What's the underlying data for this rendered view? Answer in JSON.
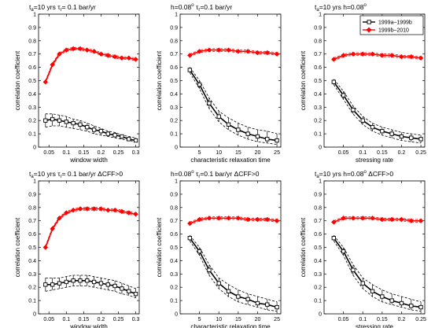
{
  "legend": {
    "location": "top-right of panel 3",
    "entries": [
      {
        "label": "1999a–1999b",
        "color": "#000000",
        "marker": "square"
      },
      {
        "label": "1999b–2010",
        "color": "#ff0000",
        "marker": "diamond"
      }
    ]
  },
  "colors": {
    "black_series": "#000000",
    "red_series": "#ff0000",
    "bounds": "#000000"
  },
  "chart_data": [
    {
      "type": "line",
      "title_parts": [
        "t",
        "a",
        "=10 yrs",
        "τ",
        "r",
        "= 0.1 bar/yr",
        ""
      ],
      "xlabel": "window width",
      "ylabel": "correlation coefficient",
      "xlim": [
        0.02,
        0.31
      ],
      "ylim": [
        0,
        1
      ],
      "xticks": [
        "0.05",
        "0.1",
        "0.15",
        "0.2",
        "0.25",
        "0.3"
      ],
      "xtick_values": [
        0.05,
        0.1,
        0.15,
        0.2,
        0.25,
        0.3
      ],
      "yticks": [
        "0",
        "0.1",
        "0.2",
        "0.3",
        "0.4",
        "0.5",
        "0.6",
        "0.7",
        "0.8",
        "0.9",
        "1"
      ],
      "x": [
        0.04,
        0.06,
        0.08,
        0.1,
        0.12,
        0.14,
        0.16,
        0.18,
        0.2,
        0.22,
        0.24,
        0.26,
        0.28,
        0.3
      ],
      "series": [
        {
          "name": "1999a–1999b",
          "color": "#000000",
          "marker": "square",
          "values": [
            0.2,
            0.21,
            0.2,
            0.19,
            0.18,
            0.17,
            0.15,
            0.13,
            0.12,
            0.1,
            0.09,
            0.08,
            0.06,
            0.05
          ],
          "lower": [
            0.15,
            0.16,
            0.16,
            0.15,
            0.14,
            0.13,
            0.12,
            0.1,
            0.09,
            0.08,
            0.07,
            0.06,
            0.05,
            0.04
          ],
          "upper": [
            0.25,
            0.25,
            0.24,
            0.23,
            0.21,
            0.2,
            0.18,
            0.16,
            0.14,
            0.12,
            0.11,
            0.09,
            0.08,
            0.07
          ]
        },
        {
          "name": "1999b–2010",
          "color": "#ff0000",
          "marker": "diamond",
          "values": [
            0.49,
            0.62,
            0.7,
            0.73,
            0.74,
            0.74,
            0.73,
            0.72,
            0.7,
            0.69,
            0.68,
            0.67,
            0.67,
            0.66
          ],
          "lower": [
            0.48,
            0.61,
            0.69,
            0.72,
            0.73,
            0.73,
            0.72,
            0.71,
            0.69,
            0.68,
            0.67,
            0.66,
            0.66,
            0.65
          ],
          "upper": [
            0.5,
            0.63,
            0.71,
            0.74,
            0.75,
            0.75,
            0.74,
            0.73,
            0.71,
            0.7,
            0.69,
            0.68,
            0.68,
            0.67
          ]
        }
      ]
    },
    {
      "type": "line",
      "title_parts": [
        "h=0.08",
        "o",
        "",
        "τ",
        "r",
        "=0.1 bar/yr",
        ""
      ],
      "xlabel": "characteristic relaxation time",
      "ylabel": "correlation coefficient",
      "xlim": [
        0,
        26
      ],
      "ylim": [
        0,
        1
      ],
      "xticks": [
        "5",
        "10",
        "15",
        "20",
        "25"
      ],
      "xtick_values": [
        5,
        10,
        15,
        20,
        25
      ],
      "yticks": [
        "0",
        "0.1",
        "0.2",
        "0.3",
        "0.4",
        "0.5",
        "0.6",
        "0.7",
        "0.8",
        "0.9",
        "1"
      ],
      "x": [
        2.5,
        5,
        7.5,
        10,
        12.5,
        15,
        17.5,
        20,
        22.5,
        25
      ],
      "series": [
        {
          "name": "1999a–1999b",
          "color": "#000000",
          "marker": "square",
          "values": [
            0.58,
            0.47,
            0.33,
            0.23,
            0.17,
            0.13,
            0.1,
            0.08,
            0.06,
            0.05
          ],
          "lower": [
            0.56,
            0.44,
            0.29,
            0.19,
            0.13,
            0.09,
            0.06,
            0.04,
            0.03,
            0.02
          ],
          "upper": [
            0.6,
            0.5,
            0.37,
            0.27,
            0.22,
            0.18,
            0.15,
            0.13,
            0.12,
            0.1
          ]
        },
        {
          "name": "1999b–2010",
          "color": "#ff0000",
          "marker": "diamond",
          "values": [
            0.69,
            0.72,
            0.73,
            0.73,
            0.73,
            0.72,
            0.72,
            0.71,
            0.71,
            0.7
          ],
          "lower": [
            0.68,
            0.71,
            0.72,
            0.72,
            0.72,
            0.71,
            0.71,
            0.7,
            0.7,
            0.69
          ],
          "upper": [
            0.7,
            0.73,
            0.74,
            0.74,
            0.74,
            0.73,
            0.73,
            0.72,
            0.72,
            0.71
          ]
        }
      ]
    },
    {
      "type": "line",
      "title_parts": [
        "t",
        "a",
        "=10 yrs",
        "",
        "",
        "h=0.08",
        "o"
      ],
      "xlabel": "stressing rate",
      "ylabel": "correlation coefficient",
      "xlim": [
        0,
        0.26
      ],
      "ylim": [
        0,
        1
      ],
      "xticks": [
        "0.05",
        "0.1",
        "0.15",
        "0.2",
        "0.25"
      ],
      "xtick_values": [
        0.05,
        0.1,
        0.15,
        0.2,
        0.25
      ],
      "yticks": [
        "0",
        "0.1",
        "0.2",
        "0.3",
        "0.4",
        "0.5",
        "0.6",
        "0.7",
        "0.8",
        "0.9",
        "1"
      ],
      "x": [
        0.025,
        0.05,
        0.075,
        0.1,
        0.125,
        0.15,
        0.175,
        0.2,
        0.225,
        0.25
      ],
      "series": [
        {
          "name": "1999a–1999b",
          "color": "#000000",
          "marker": "square",
          "values": [
            0.49,
            0.39,
            0.28,
            0.2,
            0.15,
            0.12,
            0.1,
            0.08,
            0.07,
            0.06
          ],
          "lower": [
            0.47,
            0.36,
            0.25,
            0.17,
            0.12,
            0.09,
            0.07,
            0.05,
            0.04,
            0.03
          ],
          "upper": [
            0.51,
            0.42,
            0.31,
            0.23,
            0.18,
            0.15,
            0.13,
            0.11,
            0.1,
            0.09
          ]
        },
        {
          "name": "1999b–2010",
          "color": "#ff0000",
          "marker": "diamond",
          "values": [
            0.66,
            0.69,
            0.7,
            0.7,
            0.7,
            0.69,
            0.69,
            0.68,
            0.68,
            0.67
          ],
          "lower": [
            0.65,
            0.68,
            0.69,
            0.69,
            0.69,
            0.68,
            0.68,
            0.67,
            0.67,
            0.66
          ],
          "upper": [
            0.67,
            0.7,
            0.71,
            0.71,
            0.71,
            0.7,
            0.7,
            0.69,
            0.69,
            0.68
          ]
        }
      ]
    },
    {
      "type": "line",
      "title_parts": [
        "t",
        "a",
        "=10 yrs",
        "τ",
        "r",
        "= 0.1 bar/yr",
        "ΔCFF>0"
      ],
      "xlabel": "window width",
      "ylabel": "correlation coefficient",
      "xlim": [
        0.02,
        0.31
      ],
      "ylim": [
        0,
        1
      ],
      "xticks": [
        "0.05",
        "0.1",
        "0.15",
        "0.2",
        "0.25",
        "0.3"
      ],
      "xtick_values": [
        0.05,
        0.1,
        0.15,
        0.2,
        0.25,
        0.3
      ],
      "yticks": [
        "0",
        "0.1",
        "0.2",
        "0.3",
        "0.4",
        "0.5",
        "0.6",
        "0.7",
        "0.8",
        "0.9",
        "1"
      ],
      "x": [
        0.04,
        0.06,
        0.08,
        0.1,
        0.12,
        0.14,
        0.16,
        0.18,
        0.2,
        0.22,
        0.24,
        0.26,
        0.28,
        0.3
      ],
      "series": [
        {
          "name": "1999a–1999b",
          "color": "#000000",
          "marker": "square",
          "values": [
            0.22,
            0.22,
            0.23,
            0.24,
            0.25,
            0.25,
            0.25,
            0.24,
            0.23,
            0.22,
            0.21,
            0.19,
            0.17,
            0.15
          ],
          "lower": [
            0.17,
            0.18,
            0.19,
            0.2,
            0.21,
            0.21,
            0.21,
            0.2,
            0.19,
            0.18,
            0.17,
            0.15,
            0.14,
            0.12
          ],
          "upper": [
            0.27,
            0.27,
            0.27,
            0.28,
            0.29,
            0.29,
            0.29,
            0.28,
            0.27,
            0.26,
            0.25,
            0.23,
            0.21,
            0.19
          ]
        },
        {
          "name": "1999b–2010",
          "color": "#ff0000",
          "marker": "diamond",
          "values": [
            0.5,
            0.64,
            0.72,
            0.76,
            0.78,
            0.79,
            0.79,
            0.79,
            0.79,
            0.78,
            0.78,
            0.77,
            0.76,
            0.75
          ],
          "lower": [
            0.49,
            0.63,
            0.71,
            0.75,
            0.77,
            0.78,
            0.78,
            0.78,
            0.78,
            0.77,
            0.77,
            0.76,
            0.75,
            0.74
          ],
          "upper": [
            0.51,
            0.65,
            0.73,
            0.77,
            0.79,
            0.8,
            0.8,
            0.8,
            0.8,
            0.79,
            0.79,
            0.78,
            0.77,
            0.76
          ]
        }
      ]
    },
    {
      "type": "line",
      "title_parts": [
        "h=0.08",
        "o",
        "",
        "τ",
        "r",
        "=0.1 bar/yr",
        "ΔCFF>0"
      ],
      "xlabel": "characteristic relaxation time",
      "ylabel": "correlation coefficient",
      "xlim": [
        0,
        26
      ],
      "ylim": [
        0,
        1
      ],
      "xticks": [
        "5",
        "10",
        "15",
        "20",
        "25"
      ],
      "xtick_values": [
        5,
        10,
        15,
        20,
        25
      ],
      "yticks": [
        "0",
        "0.1",
        "0.2",
        "0.3",
        "0.4",
        "0.5",
        "0.6",
        "0.7",
        "0.8",
        "0.9",
        "1"
      ],
      "x": [
        2.5,
        5,
        7.5,
        10,
        12.5,
        15,
        17.5,
        20,
        22.5,
        25
      ],
      "series": [
        {
          "name": "1999a–1999b",
          "color": "#000000",
          "marker": "square",
          "values": [
            0.57,
            0.47,
            0.33,
            0.23,
            0.17,
            0.13,
            0.11,
            0.08,
            0.07,
            0.05
          ],
          "lower": [
            0.55,
            0.44,
            0.29,
            0.19,
            0.13,
            0.09,
            0.07,
            0.05,
            0.03,
            0.02
          ],
          "upper": [
            0.59,
            0.5,
            0.37,
            0.27,
            0.22,
            0.18,
            0.15,
            0.13,
            0.11,
            0.09
          ]
        },
        {
          "name": "1999b–2010",
          "color": "#ff0000",
          "marker": "diamond",
          "values": [
            0.68,
            0.71,
            0.72,
            0.72,
            0.72,
            0.72,
            0.71,
            0.71,
            0.71,
            0.7
          ],
          "lower": [
            0.67,
            0.7,
            0.71,
            0.71,
            0.71,
            0.71,
            0.7,
            0.7,
            0.7,
            0.69
          ],
          "upper": [
            0.69,
            0.72,
            0.73,
            0.73,
            0.73,
            0.73,
            0.72,
            0.72,
            0.72,
            0.71
          ]
        }
      ]
    },
    {
      "type": "line",
      "title_parts": [
        "t",
        "a",
        "=10 yrs",
        "",
        "",
        "h=0.08",
        "o",
        "ΔCFF>0"
      ],
      "xlabel": "stressing rate",
      "ylabel": "correlation coefficient",
      "xlim": [
        0,
        0.26
      ],
      "ylim": [
        0,
        1
      ],
      "xticks": [
        "0.05",
        "0.1",
        "0.15",
        "0.2",
        "0.25"
      ],
      "xtick_values": [
        0.05,
        0.1,
        0.15,
        0.2,
        0.25
      ],
      "yticks": [
        "0",
        "0.1",
        "0.2",
        "0.3",
        "0.4",
        "0.5",
        "0.6",
        "0.7",
        "0.8",
        "0.9",
        "1"
      ],
      "x": [
        0.025,
        0.05,
        0.075,
        0.1,
        0.125,
        0.15,
        0.175,
        0.2,
        0.225,
        0.25
      ],
      "series": [
        {
          "name": "1999a–1999b",
          "color": "#000000",
          "marker": "square",
          "values": [
            0.57,
            0.47,
            0.33,
            0.23,
            0.17,
            0.13,
            0.1,
            0.08,
            0.06,
            0.05
          ],
          "lower": [
            0.55,
            0.44,
            0.29,
            0.19,
            0.13,
            0.09,
            0.07,
            0.05,
            0.03,
            0.02
          ],
          "upper": [
            0.59,
            0.5,
            0.37,
            0.27,
            0.22,
            0.18,
            0.15,
            0.13,
            0.11,
            0.09
          ]
        },
        {
          "name": "1999b–2010",
          "color": "#ff0000",
          "marker": "diamond",
          "values": [
            0.69,
            0.72,
            0.72,
            0.72,
            0.72,
            0.71,
            0.71,
            0.71,
            0.7,
            0.7
          ],
          "lower": [
            0.68,
            0.71,
            0.71,
            0.71,
            0.71,
            0.7,
            0.7,
            0.7,
            0.69,
            0.69
          ],
          "upper": [
            0.7,
            0.73,
            0.73,
            0.73,
            0.73,
            0.72,
            0.72,
            0.72,
            0.71,
            0.71
          ]
        }
      ]
    }
  ]
}
